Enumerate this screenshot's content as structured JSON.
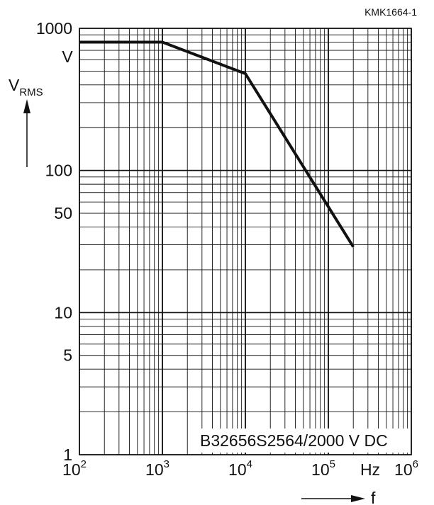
{
  "figure_code": "KMK1664-1",
  "chart_data": {
    "type": "line",
    "x_scale": "log",
    "y_scale": "log",
    "xlim": [
      100,
      1000000
    ],
    "ylim": [
      1,
      1000
    ],
    "grid": true,
    "ylabel": {
      "main": "V",
      "subscript": "RMS"
    },
    "xlabel": "f",
    "x_unit": "Hz",
    "y_unit": "V",
    "annotation": "B32656S2564/2000 V DC",
    "x_tick_labels": [
      {
        "value": 100,
        "base": "10",
        "exp": "2"
      },
      {
        "value": 1000,
        "base": "10",
        "exp": "3"
      },
      {
        "value": 10000,
        "base": "10",
        "exp": "4"
      },
      {
        "value": 100000,
        "base": "10",
        "exp": "5"
      },
      {
        "value": 1000000,
        "base": "10",
        "exp": "6"
      }
    ],
    "y_tick_labels": [
      {
        "value": 1000,
        "label": "1000"
      },
      {
        "value": 100,
        "label": "100"
      },
      {
        "value": 50,
        "label": "50"
      },
      {
        "value": 10,
        "label": "10"
      },
      {
        "value": 5,
        "label": "5"
      },
      {
        "value": 1,
        "label": "1"
      }
    ],
    "series": [
      {
        "x": [
          100,
          1000,
          10000,
          200000
        ],
        "y": [
          800,
          800,
          480,
          29
        ]
      }
    ]
  }
}
